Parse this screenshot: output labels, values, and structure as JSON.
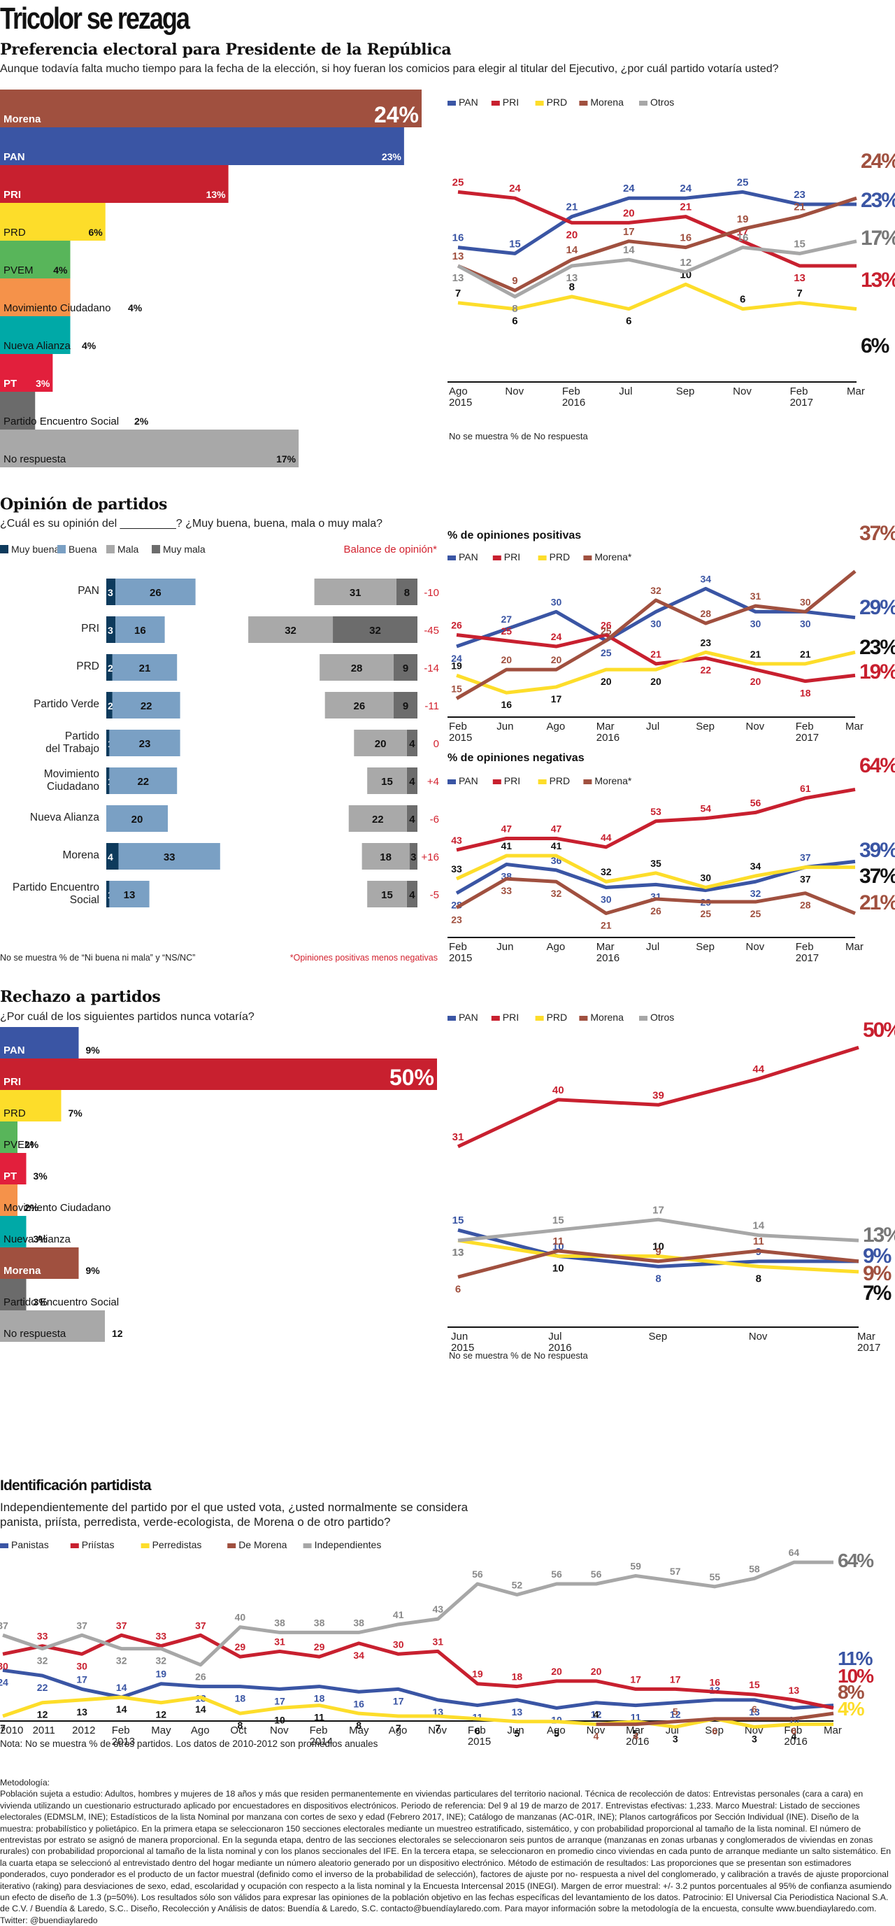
{
  "title": "Tricolor se rezaga",
  "sections": {
    "preferencia": {
      "heading": "Preferencia electoral para Presidente de la República",
      "question": "Aunque todavía falta mucho tiempo para la fecha de la elección, si hoy fueran los comicios para elegir al titular del Ejecutivo, ¿por cuál partido votaría usted?",
      "note": "No se muestra % de No respuesta"
    },
    "opinion": {
      "heading": "Opinión de partidos",
      "question": "¿Cuál es su opinión del _________? ¿Muy buena, buena, mala o muy mala?",
      "balance_label": "Balance de opinión*",
      "note_left": "No se muestra % de “Ni buena ni mala” y “NS/NC”",
      "note_right": "*Opiniones positivas menos negativas"
    },
    "rechazo": {
      "heading": "Rechazo a partidos",
      "question": "¿Por cuál de los siguientes partidos nunca votaría?",
      "note": "No se muestra % de No respuesta"
    },
    "identificacion": {
      "heading": "Identificación partidista",
      "question_line1": "Independientemente del partido por el que usted vota, ¿usted normalmente se considera",
      "question_line2": "panista, priísta, perredista, verde-ecologista, de Morena o de otro partido?",
      "note": "Nota: No se muestra % de otros partidos. Los datos de 2010-2012 son promedios anuales"
    }
  },
  "colors": {
    "PAN": "#3a55a4",
    "PRI": "#c8202f",
    "PRD": "#fddd2a",
    "Morena": "#a0503f",
    "Otros": "#a7a7a7",
    "PVEM": "#58b55a",
    "MC": "#f5924a",
    "NA": "#00a9a7",
    "PT": "#e21f3c",
    "PES": "#6b6b6b",
    "NoResp": "#a8a8a8",
    "muy_buena": "#0d3a5c",
    "buena": "#7aa0c4",
    "mala": "#a9a9a9",
    "muy_mala": "#6c6c6c",
    "balance": "#d3222f"
  },
  "chart_data": [
    {
      "id": "pref_bars",
      "type": "bar",
      "orientation": "horizontal",
      "title": "Preferencia electoral para Presidente de la República",
      "categories": [
        "Morena",
        "PAN",
        "PRI",
        "PRD",
        "PVEM",
        "Movimiento Ciudadano",
        "Nueva Alianza",
        "PT",
        "Partido Encuentro Social",
        "No respuesta"
      ],
      "values": [
        24,
        23,
        13,
        6,
        4,
        4,
        4,
        3,
        2,
        17
      ],
      "labels": [
        "24%",
        "23%",
        "13%",
        "6%",
        "4%",
        "4%",
        "4%",
        "3%",
        "2%",
        "17%"
      ],
      "color_keys": [
        "Morena",
        "PAN",
        "PRI",
        "PRD",
        "PVEM",
        "MC",
        "NA",
        "PT",
        "PES",
        "NoResp"
      ]
    },
    {
      "id": "pref_lines",
      "type": "line",
      "x": [
        "Ago 2015",
        "Nov",
        "Feb 2016",
        "Jul",
        "Sep",
        "Nov",
        "Feb 2017",
        "Mar"
      ],
      "x_ticks": [
        [
          "Ago",
          "2015"
        ],
        [
          "Nov",
          ""
        ],
        [
          "Feb",
          "2016"
        ],
        [
          "Jul",
          ""
        ],
        [
          "Sep",
          ""
        ],
        [
          "Nov",
          ""
        ],
        [
          "Feb",
          "2017"
        ],
        [
          "Mar",
          ""
        ]
      ],
      "ylim": [
        3,
        28
      ],
      "series": [
        {
          "name": "PAN",
          "values": [
            16,
            15,
            21,
            24,
            24,
            25,
            23,
            23
          ],
          "end_label": "23%"
        },
        {
          "name": "PRI",
          "values": [
            25,
            24,
            20,
            20,
            21,
            17,
            13,
            13
          ],
          "end_label": "13%"
        },
        {
          "name": "PRD",
          "values": [
            7,
            6,
            8,
            6,
            10,
            6,
            7,
            6
          ],
          "end_label": "6%"
        },
        {
          "name": "Morena",
          "values": [
            13,
            9,
            14,
            17,
            16,
            19,
            21,
            24
          ],
          "end_label": "24%"
        },
        {
          "name": "Otros",
          "values": [
            13,
            8,
            13,
            14,
            12,
            16,
            15,
            17
          ],
          "end_label": "17%"
        }
      ],
      "legend": [
        "PAN",
        "PRI",
        "PRD",
        "Morena",
        "Otros"
      ],
      "legend_position": "top-left"
    },
    {
      "id": "opinion_bars",
      "type": "bar",
      "orientation": "horizontal-diverging",
      "legend": [
        "Muy buena",
        "Buena",
        "Mala",
        "Muy mala"
      ],
      "categories": [
        "PAN",
        "PRI",
        "PRD",
        "Partido Verde",
        "Partido\ndel Trabajo",
        "Movimiento\nCiudadano",
        "Nueva Alianza",
        "Morena",
        "Partido Encuentro\nSocial"
      ],
      "series": [
        {
          "name": "Muy buena",
          "values": [
            3,
            3,
            2,
            2,
            1,
            1,
            0,
            4,
            1
          ]
        },
        {
          "name": "Buena",
          "values": [
            26,
            16,
            21,
            22,
            23,
            22,
            20,
            33,
            13
          ]
        },
        {
          "name": "Mala",
          "values": [
            31,
            32,
            28,
            26,
            20,
            15,
            22,
            18,
            15
          ]
        },
        {
          "name": "Muy mala",
          "values": [
            8,
            32,
            9,
            9,
            4,
            4,
            4,
            3,
            4
          ]
        }
      ],
      "balance": [
        "-10",
        "-45",
        "-14",
        "-11",
        "0",
        "+4",
        "-6",
        "+16",
        "-5"
      ]
    },
    {
      "id": "opinion_pos",
      "type": "line",
      "title": "% de opiniones positivas",
      "x": [
        "Feb 2015",
        "Jun",
        "Ago",
        "Mar 2016",
        "Jul",
        "Sep",
        "Nov",
        "Feb 2017",
        "Mar"
      ],
      "x_ticks": [
        [
          "Feb",
          "2015"
        ],
        [
          "Jun",
          ""
        ],
        [
          "Ago",
          ""
        ],
        [
          "Mar",
          "2016"
        ],
        [
          "Jul",
          ""
        ],
        [
          "Sep",
          ""
        ],
        [
          "Nov",
          ""
        ],
        [
          "Feb",
          "2017"
        ],
        [
          "Mar",
          ""
        ]
      ],
      "ylim": [
        13,
        39
      ],
      "series": [
        {
          "name": "PAN",
          "values": [
            24,
            27,
            30,
            25,
            30,
            34,
            30,
            30,
            29
          ],
          "end_label": "29%"
        },
        {
          "name": "PRI",
          "values": [
            26,
            25,
            24,
            26,
            21,
            22,
            20,
            18,
            19
          ],
          "end_label": "19%"
        },
        {
          "name": "PRD",
          "values": [
            19,
            16,
            17,
            20,
            20,
            23,
            21,
            21,
            23
          ],
          "end_label": "23%"
        },
        {
          "name": "Morena*",
          "values": [
            15,
            20,
            20,
            25,
            32,
            28,
            31,
            30,
            37
          ],
          "end_label": "37%"
        }
      ],
      "legend": [
        "PAN",
        "PRI",
        "PRD",
        "Morena*"
      ]
    },
    {
      "id": "opinion_neg",
      "type": "line",
      "title": "% de opiniones negativas",
      "x": [
        "Feb 2015",
        "Jun",
        "Ago",
        "Mar 2016",
        "Jul",
        "Sep",
        "Nov",
        "Feb 2017",
        "Mar"
      ],
      "x_ticks": [
        [
          "Feb",
          "2015"
        ],
        [
          "Jun",
          ""
        ],
        [
          "Ago",
          ""
        ],
        [
          "Mar",
          "2016"
        ],
        [
          "Jul",
          ""
        ],
        [
          "Sep",
          ""
        ],
        [
          "Nov",
          ""
        ],
        [
          "Feb",
          "2017"
        ],
        [
          "Mar",
          ""
        ]
      ],
      "ylim": [
        17,
        68
      ],
      "series": [
        {
          "name": "PAN",
          "values": [
            28,
            38,
            36,
            30,
            31,
            29,
            32,
            37,
            39
          ],
          "end_label": "39%"
        },
        {
          "name": "PRI",
          "values": [
            43,
            47,
            47,
            44,
            53,
            54,
            56,
            61,
            64
          ],
          "end_label": "64%"
        },
        {
          "name": "PRD",
          "values": [
            33,
            41,
            41,
            32,
            35,
            30,
            34,
            37,
            37
          ],
          "end_label": "37%"
        },
        {
          "name": "Morena*",
          "values": [
            23,
            33,
            32,
            21,
            26,
            25,
            25,
            28,
            21
          ],
          "end_label": "21%"
        }
      ],
      "legend": [
        "PAN",
        "PRI",
        "PRD",
        "Morena*"
      ]
    },
    {
      "id": "rechazo_bars",
      "type": "bar",
      "orientation": "horizontal",
      "title": "Rechazo a partidos",
      "categories": [
        "PAN",
        "PRI",
        "PRD",
        "PVEM",
        "PT",
        "Movimiento Ciudadano",
        "Nueva Alianza",
        "Morena",
        "Partido Encuentro Social",
        "No respuesta"
      ],
      "values": [
        9,
        50,
        7,
        2,
        3,
        2,
        3,
        9,
        3,
        12
      ],
      "labels": [
        "9%",
        "50%",
        "7%",
        "2%",
        "3%",
        "2%",
        "3%",
        "9%",
        "3%",
        "12"
      ],
      "color_keys": [
        "PAN",
        "PRI",
        "PRD",
        "PVEM",
        "PT",
        "MC",
        "NA",
        "Morena",
        "PES",
        "NoResp"
      ]
    },
    {
      "id": "rechazo_lines",
      "type": "line",
      "x": [
        "Jun 2015",
        "Jul 2016",
        "Sep",
        "Nov",
        "Mar 2017"
      ],
      "x_ticks": [
        [
          "Jun",
          "2015"
        ],
        [
          "Jul",
          "2016"
        ],
        [
          "Sep",
          ""
        ],
        [
          "Nov",
          ""
        ],
        [
          "Mar",
          "2017"
        ]
      ],
      "ylim": [
        0,
        55
      ],
      "series": [
        {
          "name": "PAN",
          "values": [
            15,
            10,
            8,
            9,
            9
          ],
          "end_label": "9%"
        },
        {
          "name": "PRI",
          "values": [
            31,
            40,
            39,
            44,
            50
          ],
          "end_label": "50%"
        },
        {
          "name": "PRD",
          "values": [
            13,
            10,
            10,
            8,
            7
          ],
          "end_label": "7%"
        },
        {
          "name": "Morena",
          "values": [
            6,
            11,
            9,
            11,
            9
          ],
          "end_label": "9%"
        },
        {
          "name": "Otros",
          "values": [
            13,
            15,
            17,
            14,
            13
          ],
          "end_label": "13%"
        }
      ],
      "legend": [
        "PAN",
        "PRI",
        "PRD",
        "Morena",
        "Otros"
      ]
    },
    {
      "id": "identificacion_lines",
      "type": "line",
      "x": [
        "2010",
        "2011",
        "2012",
        "Feb 2013",
        "May",
        "Ago",
        "Oct",
        "Nov",
        "Feb 2014",
        "May",
        "Ago",
        "Nov",
        "Feb 2015",
        "Jun",
        "Ago",
        "Nov",
        "Mar 2016",
        "Jul",
        "Sep",
        "Nov",
        "Feb 2016",
        "Mar"
      ],
      "x_ticks": [
        [
          "2010",
          ""
        ],
        [
          "2011",
          ""
        ],
        [
          "2012",
          ""
        ],
        [
          "Feb",
          "2013"
        ],
        [
          "May",
          ""
        ],
        [
          "Ago",
          ""
        ],
        [
          "Oct",
          ""
        ],
        [
          "Nov",
          ""
        ],
        [
          "Feb",
          "2014"
        ],
        [
          "May",
          ""
        ],
        [
          "Ago",
          ""
        ],
        [
          "Nov",
          ""
        ],
        [
          "Feb",
          "2015"
        ],
        [
          "Jun",
          ""
        ],
        [
          "Ago",
          ""
        ],
        [
          "Nov",
          ""
        ],
        [
          "Mar",
          "2016"
        ],
        [
          "Jul",
          ""
        ],
        [
          "Sep",
          ""
        ],
        [
          "Nov",
          ""
        ],
        [
          "Feb",
          "2016"
        ],
        [
          "Mar",
          ""
        ]
      ],
      "ylim": [
        0,
        70
      ],
      "series": [
        {
          "name": "Panistas",
          "values": [
            24,
            22,
            17,
            14,
            19,
            18,
            18,
            17,
            18,
            16,
            17,
            13,
            11,
            13,
            10,
            12,
            11,
            12,
            13,
            13,
            10,
            11
          ],
          "end_label": "11%"
        },
        {
          "name": "Priístas",
          "values": [
            30,
            33,
            30,
            37,
            33,
            37,
            29,
            31,
            29,
            34,
            30,
            31,
            19,
            18,
            20,
            20,
            17,
            17,
            16,
            15,
            13,
            10
          ],
          "end_label": "10%"
        },
        {
          "name": "Perredistas",
          "values": [
            7,
            12,
            13,
            14,
            12,
            14,
            8,
            10,
            11,
            8,
            7,
            7,
            6,
            5,
            5,
            4,
            5,
            3,
            6,
            3,
            4,
            4
          ],
          "end_label": "4%"
        },
        {
          "name": "De Morena",
          "values": [
            null,
            null,
            null,
            null,
            null,
            null,
            null,
            null,
            null,
            null,
            null,
            null,
            null,
            null,
            null,
            4,
            4,
            5,
            6,
            6,
            6,
            8
          ],
          "end_label": "8%"
        },
        {
          "name": "Independientes",
          "values": [
            37,
            32,
            37,
            32,
            32,
            26,
            40,
            38,
            38,
            38,
            41,
            43,
            56,
            52,
            56,
            56,
            59,
            57,
            55,
            58,
            64,
            64
          ],
          "end_label": "64%"
        }
      ],
      "legend": [
        "Panistas",
        "Priístas",
        "Perredistas",
        "De Morena",
        "Independientes"
      ]
    }
  ],
  "methodology": {
    "heading": "Metodología:",
    "text": "Población sujeta a estudio: Adultos, hombres y mujeres de 18 años y más que residen permanentemente en viviendas particulares del territorio nacional. Técnica de recolección de datos: Entrevistas personales (cara a cara) en vivienda utilizando un cuestionario estructurado aplicado por encuestadores en dispositivos electrónicos. Periodo de referencia: Del 9 al 19 de marzo de 2017. Entrevistas efectivas: 1,233. Marco Muestral: Listado de secciones electorales (EDMSLM, INE); Estadísticos de la lista Nominal por manzana con cortes de sexo y edad (Febrero 2017, INE); Catálogo de manzanas (AC-01R, INE); Planos cartográficos por Sección Individual (INE). Diseño de la muestra: probabilístico y polietápico. En la primera etapa se seleccionaron 150 secciones electorales mediante un muestreo estratificado, sistemático, y con probabilidad proporcional al tamaño de la lista nominal. El número de entrevistas por estrato se asignó de manera proporcional. En la segunda etapa, dentro de las secciones electorales se seleccionaron seis puntos de arranque (manzanas en zonas urbanas y conglomerados de viviendas en zonas rurales) con probabilidad proporcional al tamaño de la lista nominal y con los planos seccionales del IFE. En la tercera etapa, se seleccionaron en promedio cinco viviendas en cada punto de arranque mediante un salto sistemático. En la cuarta etapa se seleccionó al entrevistado dentro del hogar mediante un número aleatorio generado por un dispositivo electrónico. Método de estimación de resultados: Las proporciones que se presentan son estimadores ponderados, cuyo ponderador es el producto de un factor muestral (definido como el inverso de la probabilidad de selección), factores de ajuste por no- respuesta a nivel del conglomerado, y calibración a través de ajuste proporcional iterativo (raking) para desviaciones de sexo, edad, escolaridad y ocupación con respecto a la lista nominal y la Encuesta Intercensal 2015 (INEGI). Margen de error muestral: +/- 3.2 puntos porcentuales al 95% de confianza asumiendo un efecto de diseño de 1.3 (p=50%). Los resultados sólo son válidos para expresar las opiniones de la población objetivo en las fechas específicas del levantamiento de los datos. Patrocinio: El Universal Cia Periodistica Nacional S.A. de C.V. / Buendía & Laredo, S.C.. Diseño, Recolección y Análisis de datos: Buendía & Laredo, S.C. contacto@buendíaylaredo.com. Para mayor información sobre la metodología de la encuesta, consulte www.buendiaylaredo.com. Twitter: @buendiaylaredo"
  }
}
